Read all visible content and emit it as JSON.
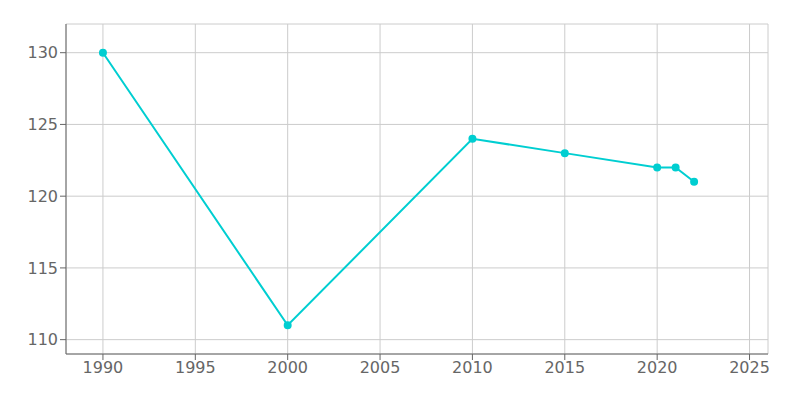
{
  "chart_data": {
    "type": "line",
    "x": [
      1990,
      2000,
      2010,
      2015,
      2020,
      2021,
      2022
    ],
    "values": [
      130,
      111,
      124,
      123,
      122,
      122,
      121
    ],
    "color": "#00CED1",
    "xlim": [
      1988,
      2026
    ],
    "ylim": [
      109,
      132
    ],
    "xticks": [
      1990,
      1995,
      2000,
      2005,
      2010,
      2015,
      2020,
      2025
    ],
    "yticks": [
      110,
      115,
      120,
      125,
      130
    ],
    "grid": true,
    "marker": "circle"
  }
}
